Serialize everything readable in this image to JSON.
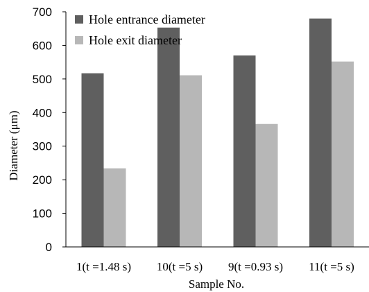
{
  "chart_data": {
    "type": "bar",
    "categories": [
      "1(t =1.48 s)",
      "10(t =5 s)",
      "9(t =0.93 s)",
      "11(t =5 s)"
    ],
    "series": [
      {
        "name": "Hole entrance diameter",
        "values": [
          517,
          653,
          570,
          680
        ],
        "color": "#5f5f5f"
      },
      {
        "name": "Hole exit diameter",
        "values": [
          234,
          511,
          366,
          552
        ],
        "color": "#b7b7b7"
      }
    ],
    "xlabel": "Sample No.",
    "ylabel": "Diameter (μm)",
    "ylim": [
      0,
      700
    ],
    "yticks": [
      0,
      100,
      200,
      300,
      400,
      500,
      600,
      700
    ],
    "grid": false,
    "legend_position": "top-left"
  }
}
